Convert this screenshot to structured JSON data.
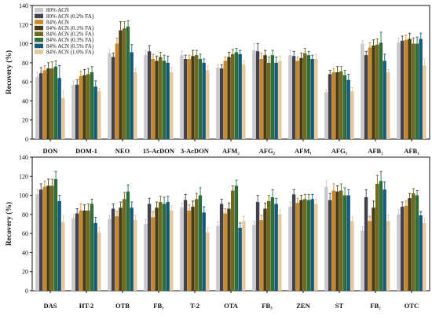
{
  "series_colors": [
    "#c9c9cc",
    "#45404d",
    "#c4892b",
    "#4a3c12",
    "#6f6a1f",
    "#2f6d3a",
    "#145a7a",
    "#e6c99a"
  ],
  "chart_data": [
    {
      "type": "bar",
      "xlabel": "",
      "ylabel": "Recovery (%)",
      "ylim": [
        0,
        140
      ],
      "yticks": [
        0,
        20,
        40,
        60,
        80,
        100,
        120,
        140
      ],
      "grid": false,
      "legend": "top-left",
      "categories": [
        "DON",
        "DOM-1",
        "NEO",
        "15-AcDON",
        "3-AcDON",
        "AFM₂",
        "AFG₂",
        "AFM₁",
        "AFG₁",
        "AFB₂",
        "AFB₁"
      ],
      "series": [
        {
          "name": "80% ACN",
          "values": [
            65,
            57,
            90,
            88,
            88,
            75,
            93,
            88,
            49,
            100,
            101
          ],
          "errors": [
            5,
            4,
            4,
            5,
            4,
            3,
            7,
            5,
            3,
            3,
            5
          ]
        },
        {
          "name": "80% ACN (0.2% FA)",
          "values": [
            69,
            57,
            86,
            92,
            84,
            74,
            92,
            87,
            68,
            88,
            103
          ],
          "errors": [
            6,
            5,
            4,
            6,
            4,
            4,
            8,
            5,
            4,
            4,
            5
          ]
        },
        {
          "name": "84% ACN",
          "values": [
            72,
            66,
            100,
            84,
            84,
            82,
            84,
            82,
            70,
            96,
            104
          ],
          "errors": [
            5,
            5,
            6,
            5,
            4,
            4,
            6,
            4,
            4,
            5,
            5
          ]
        },
        {
          "name": "84% ACN (0.1% FA)",
          "values": [
            74,
            67,
            114,
            82,
            87,
            86,
            88,
            85,
            70,
            98,
            105
          ],
          "errors": [
            6,
            6,
            9,
            5,
            6,
            5,
            5,
            5,
            6,
            6,
            6
          ]
        },
        {
          "name": "84% ACN (0.2% FA)",
          "values": [
            74,
            68,
            116,
            86,
            88,
            89,
            80,
            90,
            71,
            99,
            100
          ],
          "errors": [
            7,
            6,
            7,
            5,
            5,
            5,
            6,
            5,
            5,
            6,
            6
          ]
        },
        {
          "name": "84% ACN (0.3% FA)",
          "values": [
            76,
            70,
            118,
            82,
            84,
            91,
            88,
            88,
            67,
            101,
            100
          ],
          "errors": [
            6,
            6,
            6,
            6,
            5,
            4,
            5,
            4,
            5,
            11,
            7
          ]
        },
        {
          "name": "84% ACN (0.5% FA)",
          "values": [
            64,
            55,
            91,
            80,
            80,
            89,
            80,
            84,
            62,
            82,
            105
          ],
          "errors": [
            13,
            6,
            8,
            7,
            4,
            4,
            6,
            4,
            6,
            7,
            6
          ]
        },
        {
          "name": "84% ACN (1.0% FA)",
          "values": [
            43,
            50,
            70,
            70,
            72,
            78,
            82,
            84,
            50,
            70,
            77
          ],
          "errors": [
            8,
            3,
            4,
            5,
            5,
            4,
            5,
            5,
            4,
            3,
            7
          ]
        }
      ]
    },
    {
      "type": "bar",
      "xlabel": "",
      "ylabel": "Recovery (%)",
      "ylim": [
        0,
        140
      ],
      "yticks": [
        0,
        20,
        40,
        60,
        80,
        100,
        120,
        140
      ],
      "grid": false,
      "legend": "none",
      "categories": [
        "DAS",
        "HT-2",
        "OTB",
        "FB₁",
        "T-2",
        "OTA",
        "FB₃",
        "ZEN",
        "ST",
        "FB₂",
        "OTC"
      ],
      "series": [
        {
          "name": "80% ACN",
          "values": [
            101,
            76,
            75,
            70,
            87,
            68,
            69,
            88,
            109,
            63,
            80
          ],
          "errors": [
            5,
            4,
            4,
            5,
            5,
            4,
            4,
            5,
            6,
            4,
            5
          ]
        },
        {
          "name": "80% ACN (0.2% FA)",
          "values": [
            106,
            81,
            86,
            91,
            95,
            91,
            93,
            101,
            95,
            98,
            88
          ],
          "errors": [
            6,
            5,
            5,
            6,
            6,
            5,
            7,
            5,
            7,
            8,
            5
          ]
        },
        {
          "name": "84% ACN",
          "values": [
            109,
            84,
            78,
            77,
            84,
            81,
            74,
            92,
            105,
            73,
            89
          ],
          "errors": [
            6,
            7,
            5,
            6,
            6,
            5,
            5,
            5,
            7,
            5,
            5
          ]
        },
        {
          "name": "84% ACN (0.1% FA)",
          "values": [
            110,
            84,
            87,
            87,
            88,
            86,
            86,
            95,
            104,
            87,
            97
          ],
          "errors": [
            7,
            6,
            6,
            6,
            6,
            6,
            6,
            5,
            6,
            7,
            5
          ]
        },
        {
          "name": "84% ACN (0.2% FA)",
          "values": [
            110,
            84,
            96,
            93,
            96,
            105,
            94,
            96,
            105,
            112,
            102
          ],
          "errors": [
            7,
            7,
            7,
            6,
            6,
            5,
            6,
            5,
            7,
            9,
            5
          ]
        },
        {
          "name": "84% ACN (0.3% FA)",
          "values": [
            117,
            91,
            104,
            91,
            100,
            110,
            98,
            95,
            100,
            115,
            100
          ],
          "errors": [
            8,
            5,
            7,
            7,
            8,
            6,
            8,
            6,
            8,
            10,
            5
          ]
        },
        {
          "name": "84% ACN (0.5% FA)",
          "values": [
            94,
            71,
            87,
            93,
            82,
            66,
            91,
            96,
            100,
            106,
            79
          ],
          "errors": [
            6,
            6,
            6,
            6,
            6,
            5,
            6,
            5,
            6,
            8,
            4
          ]
        },
        {
          "name": "84% ACN (1.0% FA)",
          "values": [
            72,
            61,
            74,
            84,
            61,
            73,
            80,
            91,
            73,
            73,
            71
          ],
          "errors": [
            7,
            5,
            5,
            5,
            5,
            5,
            5,
            5,
            5,
            6,
            5
          ]
        }
      ]
    }
  ]
}
